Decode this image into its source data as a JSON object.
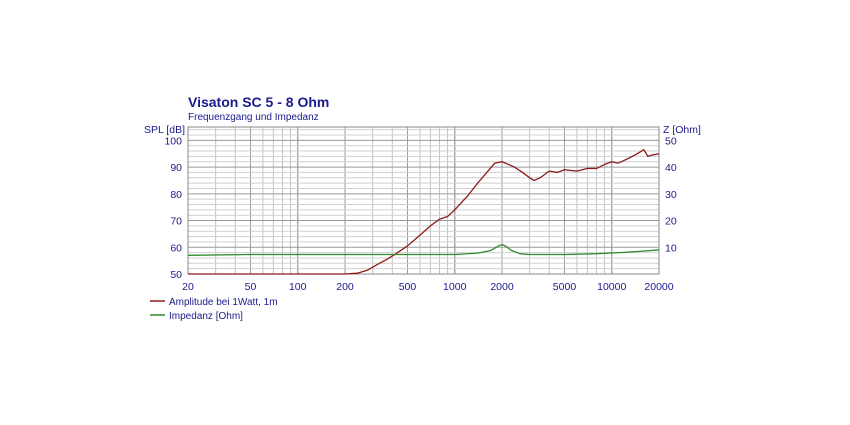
{
  "chart_data": {
    "type": "line",
    "title": "Visaton SC 5 - 8 Ohm",
    "subtitle": "Frequenzgang und Impedanz",
    "xscale": "log",
    "xlim": [
      20,
      20000
    ],
    "x_ticks": [
      20,
      50,
      100,
      200,
      500,
      1000,
      2000,
      5000,
      10000,
      20000
    ],
    "x_tick_labels": [
      "20",
      "50",
      "100",
      "200",
      "500",
      "1000",
      "2000",
      "5000",
      "10000",
      "20000"
    ],
    "y_left": {
      "label": "SPL [dB]",
      "lim": [
        50,
        105
      ],
      "ticks": [
        50,
        60,
        70,
        80,
        90,
        100
      ],
      "tick_labels": [
        "50",
        "60",
        "70",
        "80",
        "90",
        "100"
      ]
    },
    "y_right": {
      "label": "Z [Ohm]",
      "lim": [
        0,
        55
      ],
      "ticks": [
        10,
        20,
        30,
        40,
        50
      ],
      "tick_labels": [
        "10",
        "20",
        "30",
        "40",
        "50"
      ]
    },
    "grid": true,
    "legend_position": "bottom-left",
    "series": [
      {
        "name": "Amplitude bei 1Watt, 1m",
        "axis": "left",
        "color": "#8b1a1a",
        "points": [
          [
            20,
            50
          ],
          [
            100,
            50
          ],
          [
            200,
            50
          ],
          [
            240,
            50.3
          ],
          [
            280,
            51.5
          ],
          [
            320,
            53.5
          ],
          [
            370,
            55.5
          ],
          [
            420,
            57.5
          ],
          [
            500,
            60.5
          ],
          [
            600,
            64.5
          ],
          [
            700,
            68
          ],
          [
            800,
            70.5
          ],
          [
            900,
            71.5
          ],
          [
            1000,
            74
          ],
          [
            1200,
            79
          ],
          [
            1400,
            84
          ],
          [
            1600,
            88
          ],
          [
            1800,
            91.5
          ],
          [
            2000,
            92
          ],
          [
            2200,
            91
          ],
          [
            2400,
            90
          ],
          [
            2700,
            88
          ],
          [
            3000,
            86
          ],
          [
            3200,
            85
          ],
          [
            3500,
            86
          ],
          [
            4000,
            88.5
          ],
          [
            4500,
            88
          ],
          [
            5000,
            89
          ],
          [
            6000,
            88.5
          ],
          [
            7000,
            89.5
          ],
          [
            8000,
            89.5
          ],
          [
            9000,
            91
          ],
          [
            10000,
            92
          ],
          [
            11000,
            91.5
          ],
          [
            12000,
            92.5
          ],
          [
            13000,
            93.5
          ],
          [
            14000,
            94.5
          ],
          [
            15000,
            95.5
          ],
          [
            16000,
            96.5
          ],
          [
            17000,
            94
          ],
          [
            18000,
            94.5
          ],
          [
            20000,
            95
          ]
        ]
      },
      {
        "name": "Impedanz [Ohm]",
        "axis": "right",
        "color": "#2e8b2e",
        "points": [
          [
            20,
            7
          ],
          [
            50,
            7.3
          ],
          [
            100,
            7.3
          ],
          [
            200,
            7.3
          ],
          [
            500,
            7.3
          ],
          [
            1000,
            7.3
          ],
          [
            1400,
            7.8
          ],
          [
            1700,
            8.8
          ],
          [
            1900,
            10.5
          ],
          [
            2000,
            11
          ],
          [
            2100,
            10.5
          ],
          [
            2300,
            8.8
          ],
          [
            2600,
            7.6
          ],
          [
            3000,
            7.3
          ],
          [
            5000,
            7.3
          ],
          [
            8000,
            7.6
          ],
          [
            12000,
            8.1
          ],
          [
            16000,
            8.6
          ],
          [
            20000,
            9
          ]
        ]
      }
    ]
  }
}
